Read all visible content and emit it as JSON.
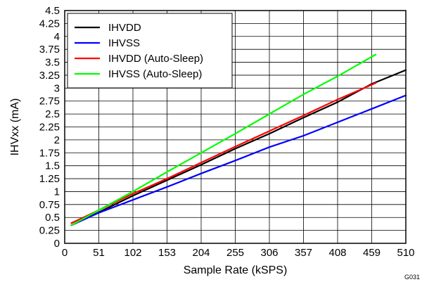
{
  "chart_data": {
    "type": "line",
    "xlabel": "Sample Rate (kSPS)",
    "ylabel": "IHVxx (mA)",
    "xlim": [
      0,
      510
    ],
    "ylim": [
      0,
      4.5
    ],
    "x_ticks": [
      0,
      51,
      102,
      153,
      204,
      255,
      306,
      357,
      408,
      459,
      510
    ],
    "y_ticks": [
      0,
      0.25,
      0.5,
      0.75,
      1,
      1.25,
      1.5,
      1.75,
      2,
      2.25,
      2.5,
      2.75,
      3,
      3.25,
      3.5,
      3.75,
      4,
      4.25,
      4.5
    ],
    "grid": true,
    "legend_position": "top-left",
    "figure_code": "G031",
    "series": [
      {
        "name": "IHVDD",
        "color": "#000000",
        "points": [
          [
            10,
            0.35
          ],
          [
            51,
            0.6
          ],
          [
            102,
            0.92
          ],
          [
            153,
            1.22
          ],
          [
            204,
            1.52
          ],
          [
            255,
            1.83
          ],
          [
            306,
            2.12
          ],
          [
            357,
            2.43
          ],
          [
            408,
            2.73
          ],
          [
            459,
            3.08
          ],
          [
            510,
            3.35
          ]
        ]
      },
      {
        "name": "IHVSS",
        "color": "#0000ff",
        "points": [
          [
            10,
            0.35
          ],
          [
            51,
            0.59
          ],
          [
            102,
            0.84
          ],
          [
            153,
            1.09
          ],
          [
            204,
            1.35
          ],
          [
            255,
            1.6
          ],
          [
            306,
            1.86
          ],
          [
            357,
            2.08
          ],
          [
            408,
            2.34
          ],
          [
            459,
            2.6
          ],
          [
            510,
            2.86
          ]
        ]
      },
      {
        "name": "IHVDD (Auto-Sleep)",
        "color": "#ff0000",
        "points": [
          [
            10,
            0.39
          ],
          [
            51,
            0.64
          ],
          [
            102,
            0.96
          ],
          [
            153,
            1.25
          ],
          [
            204,
            1.56
          ],
          [
            255,
            1.87
          ],
          [
            306,
            2.17
          ],
          [
            357,
            2.47
          ],
          [
            408,
            2.78
          ],
          [
            465,
            3.1
          ]
        ]
      },
      {
        "name": "IHVSS (Auto-Sleep)",
        "color": "#00ff00",
        "points": [
          [
            10,
            0.35
          ],
          [
            51,
            0.64
          ],
          [
            102,
            1.0
          ],
          [
            153,
            1.38
          ],
          [
            204,
            1.75
          ],
          [
            255,
            2.12
          ],
          [
            306,
            2.5
          ],
          [
            357,
            2.88
          ],
          [
            408,
            3.23
          ],
          [
            465,
            3.65
          ]
        ]
      }
    ]
  }
}
